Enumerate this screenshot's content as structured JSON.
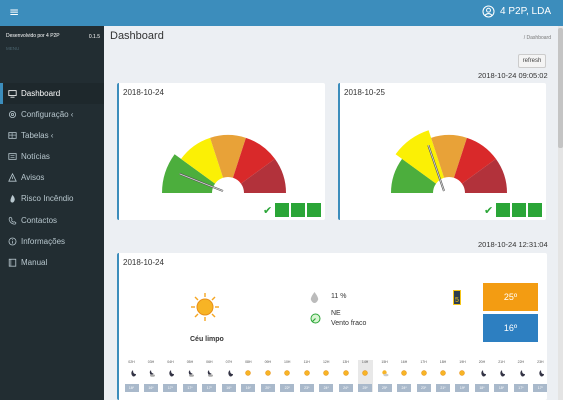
{
  "topbar": {
    "menu_icon": "hamburger-icon",
    "user_label": "4 P2P, LDA",
    "user_icon": "user-circle-icon"
  },
  "sidebar": {
    "developer": "Desenvolvido por 4 P2P",
    "version": "0.1.5",
    "menu_header": "MENU",
    "items": [
      {
        "label": "Dashboard",
        "icon": "monitor-icon",
        "active": true
      },
      {
        "label": "Configuração ‹",
        "icon": "gear-icon"
      },
      {
        "label": "Tabelas ‹",
        "icon": "table-icon"
      },
      {
        "label": "Notícias",
        "icon": "newspaper-icon"
      },
      {
        "label": "Avisos",
        "icon": "warning-icon"
      },
      {
        "label": "Risco Incêndio",
        "icon": "fire-icon"
      },
      {
        "label": "Contactos",
        "icon": "phone-icon"
      },
      {
        "label": "Informações",
        "icon": "info-icon"
      },
      {
        "label": "Manual",
        "icon": "book-icon"
      }
    ]
  },
  "page": {
    "title": "Dashboard",
    "breadcrumb": "/ Dashboard",
    "refresh_label": "refresh"
  },
  "risk": {
    "timestamp": "2018-10-24 09:05:02",
    "colors": [
      "#4cae3d",
      "#fbf005",
      "#e8a238",
      "#d9292a",
      "#b2323b"
    ],
    "cards": [
      {
        "date": "2018-10-24",
        "level_fraction": 0.07
      },
      {
        "date": "2018-10-25",
        "level_fraction": 0.32
      }
    ]
  },
  "weather": {
    "timestamp": "2018-10-24 12:31:04",
    "date": "2018-10-24",
    "condition": "Céu limpo",
    "humidity": "11 %",
    "wind_dir": "NE",
    "wind_desc": "Vento fraco",
    "uv_index": "5",
    "temp_max": "25º",
    "temp_min": "16º",
    "temp_max_color": "#f39c12",
    "temp_min_color": "#2d7fc1",
    "hours": [
      {
        "h": "02H",
        "t": "16º",
        "icon": "moon"
      },
      {
        "h": "03H",
        "t": "16º",
        "icon": "moon-cloud"
      },
      {
        "h": "04H",
        "t": "17º",
        "icon": "moon"
      },
      {
        "h": "05H",
        "t": "17º",
        "icon": "moon-cloud"
      },
      {
        "h": "06H",
        "t": "17º",
        "icon": "moon-cloud"
      },
      {
        "h": "07H",
        "t": "16º",
        "icon": "moon"
      },
      {
        "h": "08H",
        "t": "16º",
        "icon": "sun"
      },
      {
        "h": "09H",
        "t": "20º",
        "icon": "sun"
      },
      {
        "h": "10H",
        "t": "22º",
        "icon": "sun"
      },
      {
        "h": "11H",
        "t": "23º",
        "icon": "sun"
      },
      {
        "h": "12H",
        "t": "24º",
        "icon": "sun"
      },
      {
        "h": "13H",
        "t": "24º",
        "icon": "sun"
      },
      {
        "h": "14H",
        "t": "25º",
        "icon": "sun",
        "hl": true
      },
      {
        "h": "15H",
        "t": "25º",
        "icon": "sun-cloud"
      },
      {
        "h": "16H",
        "t": "24º",
        "icon": "sun"
      },
      {
        "h": "17H",
        "t": "23º",
        "icon": "sun"
      },
      {
        "h": "18H",
        "t": "21º",
        "icon": "sun"
      },
      {
        "h": "19H",
        "t": "19º",
        "icon": "sun"
      },
      {
        "h": "20H",
        "t": "18º",
        "icon": "moon"
      },
      {
        "h": "21H",
        "t": "18º",
        "icon": "moon"
      },
      {
        "h": "22H",
        "t": "17º",
        "icon": "moon"
      },
      {
        "h": "23H",
        "t": "17º",
        "icon": "moon"
      }
    ]
  }
}
